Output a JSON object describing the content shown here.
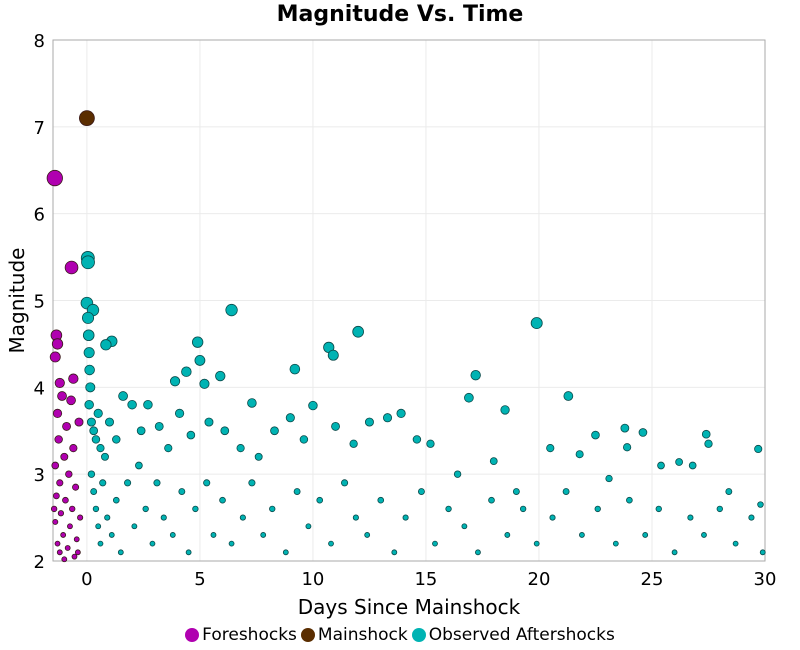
{
  "chart_data": {
    "type": "scatter",
    "title": "Magnitude Vs. Time",
    "xlabel": "Days Since Mainshock",
    "ylabel": "Magnitude",
    "xlim": [
      -1.5,
      30
    ],
    "ylim": [
      2,
      8
    ],
    "xticks": [
      0,
      5,
      10,
      15,
      20,
      25,
      30
    ],
    "yticks": [
      2,
      3,
      4,
      5,
      6,
      7,
      8
    ],
    "grid": true,
    "legend_position": "bottom",
    "series": [
      {
        "name": "Foreshocks",
        "color": "#b000b0",
        "points": [
          [
            -1.42,
            6.41
          ],
          [
            -0.68,
            5.38
          ],
          [
            -1.35,
            4.6
          ],
          [
            -1.3,
            4.5
          ],
          [
            -1.4,
            4.35
          ],
          [
            -1.2,
            4.05
          ],
          [
            -0.6,
            4.1
          ],
          [
            -1.1,
            3.9
          ],
          [
            -0.7,
            3.85
          ],
          [
            -1.3,
            3.7
          ],
          [
            -0.9,
            3.55
          ],
          [
            -1.25,
            3.4
          ],
          [
            -0.6,
            3.3
          ],
          [
            -1.0,
            3.2
          ],
          [
            -1.4,
            3.1
          ],
          [
            -0.8,
            3.0
          ],
          [
            -1.2,
            2.9
          ],
          [
            -0.5,
            2.85
          ],
          [
            -1.35,
            2.75
          ],
          [
            -0.95,
            2.7
          ],
          [
            -0.65,
            2.6
          ],
          [
            -1.15,
            2.55
          ],
          [
            -1.4,
            2.45
          ],
          [
            -0.75,
            2.4
          ],
          [
            -1.05,
            2.3
          ],
          [
            -0.45,
            2.25
          ],
          [
            -1.3,
            2.2
          ],
          [
            -0.85,
            2.15
          ],
          [
            -1.2,
            2.1
          ],
          [
            -0.55,
            2.05
          ],
          [
            -1.0,
            2.02
          ],
          [
            -0.3,
            2.5
          ],
          [
            -0.35,
            3.6
          ],
          [
            -0.4,
            2.1
          ],
          [
            -1.45,
            2.6
          ]
        ]
      },
      {
        "name": "Mainshock",
        "color": "#5a2d00",
        "points": [
          [
            0.0,
            7.1
          ]
        ]
      },
      {
        "name": "Observed Aftershocks",
        "color": "#00b3b3",
        "points": [
          [
            0.04,
            5.49
          ],
          [
            0.05,
            5.44
          ],
          [
            0.0,
            4.97
          ],
          [
            0.27,
            4.89
          ],
          [
            6.4,
            4.89
          ],
          [
            19.9,
            4.74
          ],
          [
            12.0,
            4.64
          ],
          [
            10.7,
            4.46
          ],
          [
            10.9,
            4.37
          ],
          [
            4.9,
            4.52
          ],
          [
            9.2,
            4.21
          ],
          [
            17.2,
            4.14
          ],
          [
            1.1,
            4.53
          ],
          [
            0.84,
            4.49
          ],
          [
            21.3,
            3.9
          ],
          [
            18.5,
            3.74
          ],
          [
            16.9,
            3.88
          ],
          [
            7.3,
            3.82
          ],
          [
            10.0,
            3.79
          ],
          [
            4.4,
            4.18
          ],
          [
            5.9,
            4.13
          ],
          [
            5.0,
            4.31
          ],
          [
            5.2,
            4.04
          ],
          [
            3.9,
            4.07
          ],
          [
            23.8,
            3.53
          ],
          [
            24.6,
            3.48
          ],
          [
            27.4,
            3.46
          ],
          [
            29.7,
            3.29
          ],
          [
            23.9,
            3.31
          ],
          [
            21.8,
            3.23
          ],
          [
            27.5,
            3.35
          ],
          [
            26.2,
            3.14
          ],
          [
            0.05,
            4.8
          ],
          [
            0.08,
            4.6
          ],
          [
            0.1,
            4.4
          ],
          [
            0.12,
            4.2
          ],
          [
            0.15,
            4.0
          ],
          [
            0.1,
            3.8
          ],
          [
            0.2,
            3.6
          ],
          [
            0.3,
            3.5
          ],
          [
            0.4,
            3.4
          ],
          [
            0.5,
            3.7
          ],
          [
            0.6,
            3.3
          ],
          [
            0.8,
            3.2
          ],
          [
            1.0,
            3.6
          ],
          [
            1.3,
            3.4
          ],
          [
            1.6,
            3.9
          ],
          [
            2.0,
            3.8
          ],
          [
            2.4,
            3.5
          ],
          [
            2.7,
            3.8
          ],
          [
            3.2,
            3.55
          ],
          [
            3.6,
            3.3
          ],
          [
            4.1,
            3.7
          ],
          [
            4.6,
            3.45
          ],
          [
            5.4,
            3.6
          ],
          [
            6.1,
            3.5
          ],
          [
            6.8,
            3.3
          ],
          [
            7.6,
            3.2
          ],
          [
            8.3,
            3.5
          ],
          [
            9.0,
            3.65
          ],
          [
            9.6,
            3.4
          ],
          [
            11.0,
            3.55
          ],
          [
            11.8,
            3.35
          ],
          [
            12.5,
            3.6
          ],
          [
            13.3,
            3.65
          ],
          [
            13.9,
            3.7
          ],
          [
            14.6,
            3.4
          ],
          [
            15.2,
            3.35
          ],
          [
            16.4,
            3.0
          ],
          [
            18.0,
            3.15
          ],
          [
            19.0,
            2.8
          ],
          [
            20.5,
            3.3
          ],
          [
            22.5,
            3.45
          ],
          [
            23.1,
            2.95
          ],
          [
            25.4,
            3.1
          ],
          [
            26.8,
            3.1
          ],
          [
            28.4,
            2.8
          ],
          [
            29.8,
            2.65
          ],
          [
            0.2,
            3.0
          ],
          [
            0.3,
            2.8
          ],
          [
            0.4,
            2.6
          ],
          [
            0.5,
            2.4
          ],
          [
            0.6,
            2.2
          ],
          [
            0.7,
            2.9
          ],
          [
            0.9,
            2.5
          ],
          [
            1.1,
            2.3
          ],
          [
            1.3,
            2.7
          ],
          [
            1.5,
            2.1
          ],
          [
            1.8,
            2.9
          ],
          [
            2.1,
            2.4
          ],
          [
            2.3,
            3.1
          ],
          [
            2.6,
            2.6
          ],
          [
            2.9,
            2.2
          ],
          [
            3.1,
            2.9
          ],
          [
            3.4,
            2.5
          ],
          [
            3.8,
            2.3
          ],
          [
            4.2,
            2.8
          ],
          [
            4.5,
            2.1
          ],
          [
            4.8,
            2.6
          ],
          [
            5.3,
            2.9
          ],
          [
            5.6,
            2.3
          ],
          [
            6.0,
            2.7
          ],
          [
            6.4,
            2.2
          ],
          [
            6.9,
            2.5
          ],
          [
            7.3,
            2.9
          ],
          [
            7.8,
            2.3
          ],
          [
            8.2,
            2.6
          ],
          [
            8.8,
            2.1
          ],
          [
            9.3,
            2.8
          ],
          [
            9.8,
            2.4
          ],
          [
            10.3,
            2.7
          ],
          [
            10.8,
            2.2
          ],
          [
            11.4,
            2.9
          ],
          [
            11.9,
            2.5
          ],
          [
            12.4,
            2.3
          ],
          [
            13.0,
            2.7
          ],
          [
            13.6,
            2.1
          ],
          [
            14.1,
            2.5
          ],
          [
            14.8,
            2.8
          ],
          [
            15.4,
            2.2
          ],
          [
            16.0,
            2.6
          ],
          [
            16.7,
            2.4
          ],
          [
            17.3,
            2.1
          ],
          [
            17.9,
            2.7
          ],
          [
            18.6,
            2.3
          ],
          [
            19.3,
            2.6
          ],
          [
            19.9,
            2.2
          ],
          [
            20.6,
            2.5
          ],
          [
            21.2,
            2.8
          ],
          [
            21.9,
            2.3
          ],
          [
            22.6,
            2.6
          ],
          [
            23.4,
            2.2
          ],
          [
            24.0,
            2.7
          ],
          [
            24.7,
            2.3
          ],
          [
            25.3,
            2.6
          ],
          [
            26.0,
            2.1
          ],
          [
            26.7,
            2.5
          ],
          [
            27.3,
            2.3
          ],
          [
            28.0,
            2.6
          ],
          [
            28.7,
            2.2
          ],
          [
            29.4,
            2.5
          ],
          [
            29.9,
            2.1
          ]
        ]
      }
    ]
  },
  "legend": {
    "foreshocks": "Foreshocks",
    "mainshock": "Mainshock",
    "aftershocks": "Observed Aftershocks"
  }
}
